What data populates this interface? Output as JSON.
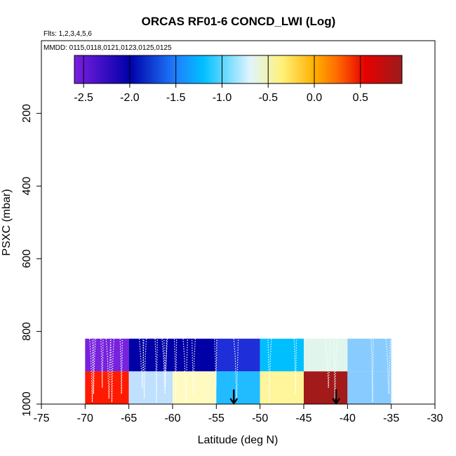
{
  "chart_data": {
    "type": "heatmap",
    "title": "ORCAS RF01-6 CONCD_LWI (Log)",
    "subtitle_flights": "Flts: 1,2,3,4,5,6",
    "subtitle_dates": "MMDD: 0115,0118,0121,0123,0125,0125",
    "xlabel": "Latitude (deg N)",
    "ylabel": "PSXC (mbar)",
    "xlim": [
      -75,
      -30
    ],
    "ylim": [
      1000,
      0
    ],
    "x_ticks": [
      -75,
      -70,
      -65,
      -60,
      -55,
      -50,
      -45,
      -40,
      -35,
      -30
    ],
    "y_ticks": [
      200,
      400,
      600,
      800,
      1000
    ],
    "colorbar": {
      "range": [
        -2.6,
        0.95
      ],
      "ticks": [
        -2.5,
        -2.0,
        -1.5,
        -1.0,
        -0.5,
        0.0,
        0.5
      ],
      "tick_labels": [
        "-2.5",
        "-2.0",
        "-1.5",
        "-1.0",
        "-0.5",
        "0.0",
        "0.5"
      ],
      "colors": [
        "#7b1fe0",
        "#0000a8",
        "#1f7fff",
        "#00c0ff",
        "#dff4ff",
        "#fff27a",
        "#ffb000",
        "#ff6a00",
        "#e60000",
        "#9b1c1c"
      ],
      "color_stops": [
        -2.6,
        -2.0,
        -1.5,
        -1.2,
        -0.7,
        -0.35,
        0.0,
        0.25,
        0.55,
        0.95
      ]
    },
    "cells": [
      {
        "lat": [
          -70,
          -65
        ],
        "p": [
          820,
          910
        ],
        "color": "#7722dd"
      },
      {
        "lat": [
          -65,
          -55
        ],
        "p": [
          820,
          910
        ],
        "color": "#0000a6"
      },
      {
        "lat": [
          -55,
          -50
        ],
        "p": [
          820,
          910
        ],
        "color": "#1e2ed8"
      },
      {
        "lat": [
          -50,
          -45
        ],
        "p": [
          820,
          910
        ],
        "color": "#00bfff"
      },
      {
        "lat": [
          -45,
          -40
        ],
        "p": [
          820,
          910
        ],
        "color": "#e0f6ec"
      },
      {
        "lat": [
          -40,
          -35
        ],
        "p": [
          820,
          910
        ],
        "color": "#88ccff"
      },
      {
        "lat": [
          -70,
          -65
        ],
        "p": [
          910,
          1000
        ],
        "color": "#ff1a00"
      },
      {
        "lat": [
          -65,
          -60
        ],
        "p": [
          910,
          1000
        ],
        "color": "#bfe0ff"
      },
      {
        "lat": [
          -60,
          -55
        ],
        "p": [
          910,
          1000
        ],
        "color": "#fffbc0"
      },
      {
        "lat": [
          -55,
          -50
        ],
        "p": [
          910,
          1000
        ],
        "color": "#20bcff"
      },
      {
        "lat": [
          -50,
          -45
        ],
        "p": [
          910,
          1000
        ],
        "color": "#fff59a"
      },
      {
        "lat": [
          -45,
          -40
        ],
        "p": [
          910,
          1000
        ],
        "color": "#a21a1a"
      },
      {
        "lat": [
          -40,
          -35
        ],
        "p": [
          910,
          1000
        ],
        "color": "#88ccff"
      }
    ],
    "track_longitudes": [
      -69.5,
      -68.8,
      -68.2,
      -67.6,
      -66.7,
      -66.0,
      -63.8,
      -63.0,
      -62.0,
      -61.2,
      -60.6,
      -59.8,
      -58.8,
      -57.4,
      -55.2,
      -53.0,
      -48.7,
      -46.1,
      -42.5,
      -41.2,
      -37.3,
      -35.6
    ],
    "markers": [
      {
        "lat": -53.0,
        "p_start": 960,
        "p_end": 1000
      },
      {
        "lat": -41.3,
        "p_start": 960,
        "p_end": 1000
      }
    ]
  }
}
